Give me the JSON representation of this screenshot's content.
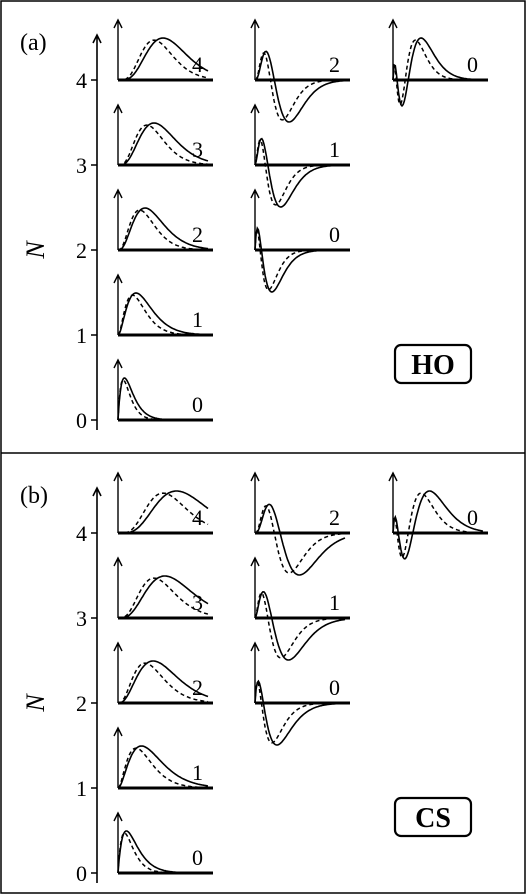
{
  "figure": {
    "panels": [
      {
        "label": "(a)",
        "badge": "HO",
        "y_axis": {
          "label": "N",
          "ticks": [
            "0",
            "1",
            "2",
            "3",
            "4"
          ]
        },
        "columns": [
          {
            "curves": [
              {
                "N": 0,
                "label": "0"
              },
              {
                "N": 1,
                "label": "1"
              },
              {
                "N": 2,
                "label": "2"
              },
              {
                "N": 3,
                "label": "3"
              },
              {
                "N": 4,
                "label": "4"
              }
            ]
          },
          {
            "curves": [
              {
                "N": 2,
                "label": "0"
              },
              {
                "N": 3,
                "label": "1"
              },
              {
                "N": 4,
                "label": "2"
              }
            ]
          },
          {
            "curves": [
              {
                "N": 4,
                "label": "0"
              }
            ]
          }
        ]
      },
      {
        "label": "(b)",
        "badge": "CS",
        "y_axis": {
          "label": "N",
          "ticks": [
            "0",
            "1",
            "2",
            "3",
            "4"
          ]
        },
        "columns": [
          {
            "curves": [
              {
                "N": 0,
                "label": "0"
              },
              {
                "N": 1,
                "label": "1"
              },
              {
                "N": 2,
                "label": "2"
              },
              {
                "N": 3,
                "label": "3"
              },
              {
                "N": 4,
                "label": "4"
              }
            ]
          },
          {
            "curves": [
              {
                "N": 2,
                "label": "0"
              },
              {
                "N": 3,
                "label": "1"
              },
              {
                "N": 4,
                "label": "2"
              }
            ]
          },
          {
            "curves": [
              {
                "N": 4,
                "label": "0"
              }
            ]
          }
        ]
      }
    ]
  }
}
